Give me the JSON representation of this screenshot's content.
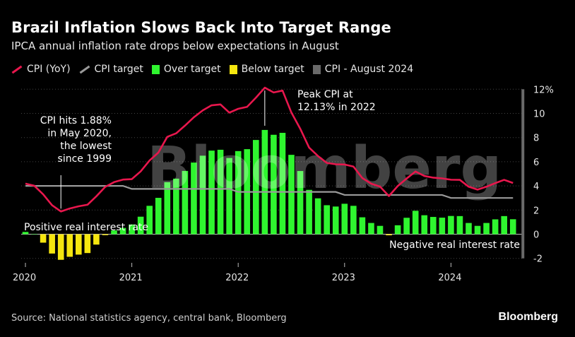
{
  "header": {
    "title": "Brazil Inflation Slows Back Into Target Range",
    "subtitle": "IPCA annual inflation rate drops below expectations in August"
  },
  "legend": [
    {
      "label": "CPI (YoY)",
      "kind": "line",
      "color": "#e8174d"
    },
    {
      "label": "CPI target",
      "kind": "line",
      "color": "#9a9a9a"
    },
    {
      "label": "Over target",
      "kind": "box",
      "color": "#2ff52f"
    },
    {
      "label": "Below target",
      "kind": "box",
      "color": "#f5e60f"
    },
    {
      "label": "CPI - August 2024",
      "kind": "box",
      "color": "#6a6a6a"
    }
  ],
  "footer": {
    "source": "Source: National statistics agency, central bank, Bloomberg",
    "brand": "Bloomberg"
  },
  "watermark": "Bloomberg",
  "chart_data": {
    "type": "bar",
    "x_start": "2020-01",
    "x_ticks": [
      "2020",
      "2021",
      "2022",
      "2023",
      "2024"
    ],
    "y_ticks": [
      "12%",
      "10",
      "8",
      "6",
      "4",
      "2",
      "0",
      "-2"
    ],
    "y_tick_values": [
      12,
      10,
      8,
      6,
      4,
      2,
      0,
      -2
    ],
    "ylim": [
      -2,
      12
    ],
    "grid": true,
    "cpi_yoy": [
      4.19,
      4.01,
      3.3,
      2.4,
      1.88,
      2.13,
      2.31,
      2.44,
      3.14,
      3.92,
      4.31,
      4.52,
      4.56,
      5.2,
      6.1,
      6.76,
      8.06,
      8.35,
      8.99,
      9.68,
      10.25,
      10.67,
      10.74,
      10.06,
      10.38,
      10.54,
      11.3,
      12.13,
      11.73,
      11.89,
      10.07,
      8.73,
      7.17,
      6.47,
      5.9,
      5.79,
      5.77,
      5.6,
      4.65,
      4.18,
      3.94,
      3.16,
      3.99,
      4.61,
      5.19,
      4.82,
      4.68,
      4.62,
      4.51,
      4.5,
      3.93,
      3.69,
      3.93,
      4.23,
      4.5,
      4.24
    ],
    "cpi_target": [
      4.0,
      4.0,
      4.0,
      4.0,
      4.0,
      4.0,
      4.0,
      4.0,
      4.0,
      4.0,
      4.0,
      4.0,
      3.75,
      3.75,
      3.75,
      3.75,
      3.75,
      3.75,
      3.75,
      3.75,
      3.75,
      3.75,
      3.75,
      3.75,
      3.5,
      3.5,
      3.5,
      3.5,
      3.5,
      3.5,
      3.5,
      3.5,
      3.5,
      3.5,
      3.5,
      3.5,
      3.25,
      3.25,
      3.25,
      3.25,
      3.25,
      3.25,
      3.25,
      3.25,
      3.25,
      3.25,
      3.25,
      3.25,
      3.0,
      3.0,
      3.0,
      3.0,
      3.0,
      3.0,
      3.0,
      3.0
    ],
    "gap_series": [
      {
        "name": "Over target",
        "color": "#2ff52f"
      },
      {
        "name": "Below target",
        "color": "#f5e60f"
      }
    ],
    "latest": {
      "label": "CPI - August 2024",
      "color": "#6a6a6a",
      "range": [
        -2,
        12
      ]
    },
    "annotations": [
      {
        "text": [
          "CPI hits 1.88%",
          "in May 2020,",
          "the lowest",
          "since 1999"
        ],
        "month_index": 4
      },
      {
        "text": [
          "Peak CPI at",
          "12.13% in 2022"
        ],
        "month_index": 27
      }
    ],
    "zone_labels": {
      "positive": "Positive real interest rate",
      "negative": "Negative real interest rate"
    },
    "colors": {
      "line": "#e8174d",
      "target": "#9a9a9a",
      "grid": "#444444"
    }
  }
}
